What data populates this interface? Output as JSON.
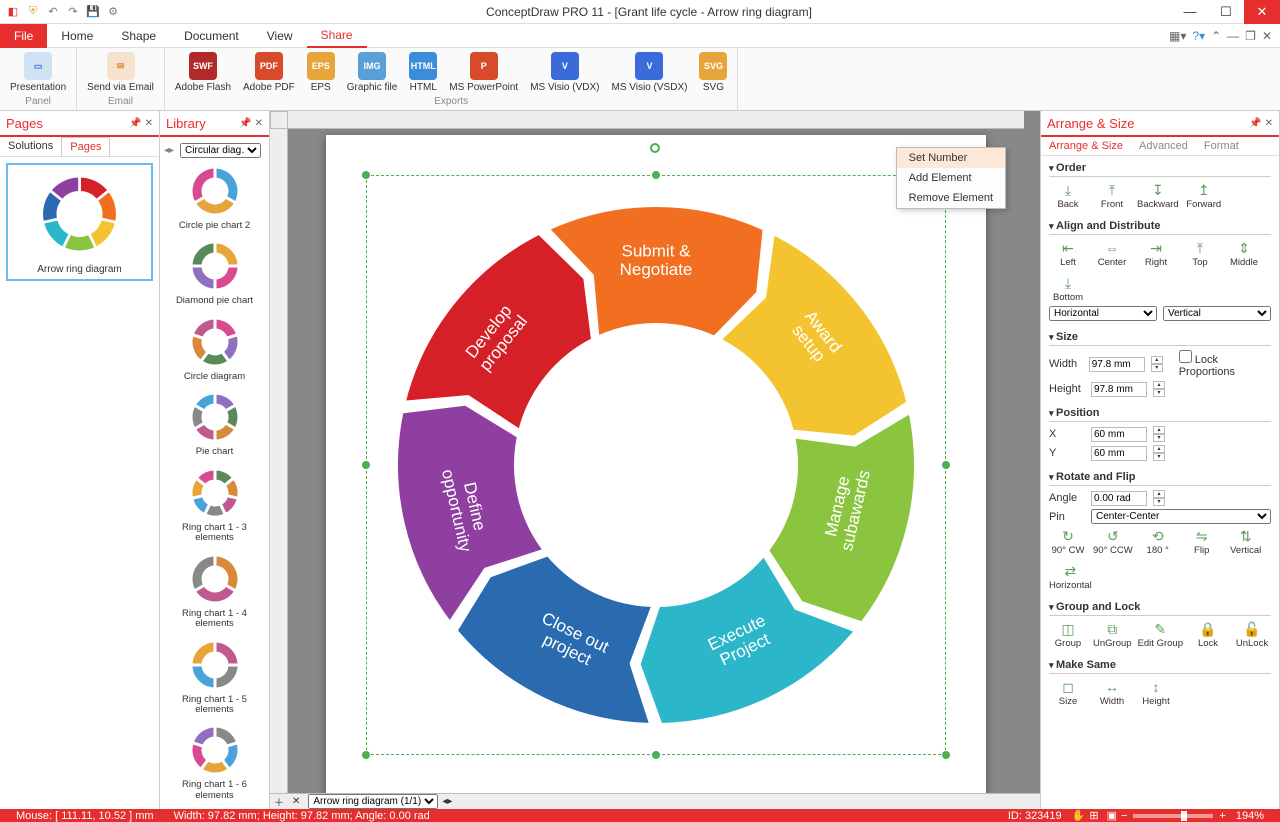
{
  "app_title": "ConceptDraw PRO 11 - [Grant life cycle - Arrow ring diagram]",
  "ribbon": {
    "file": "File",
    "tabs": [
      "Home",
      "Shape",
      "Document",
      "View",
      "Share"
    ],
    "active_tab": "Share",
    "groups": {
      "panel": {
        "label": "Panel",
        "items": [
          {
            "name": "Presentation"
          }
        ]
      },
      "email": {
        "label": "Email",
        "items": [
          {
            "name": "Send via Email"
          }
        ]
      },
      "exports": {
        "label": "Exports",
        "items": [
          {
            "name": "Adobe Flash",
            "color": "#b02a2a",
            "tag": "SWF"
          },
          {
            "name": "Adobe PDF",
            "color": "#d84b2a",
            "tag": "PDF"
          },
          {
            "name": "EPS",
            "color": "#e6a53a",
            "tag": "EPS"
          },
          {
            "name": "Graphic file",
            "color": "#5aa0d8",
            "tag": "IMG"
          },
          {
            "name": "HTML",
            "color": "#3a8dd8",
            "tag": "HTML"
          },
          {
            "name": "MS PowerPoint",
            "color": "#d84b2a",
            "tag": "P"
          },
          {
            "name": "MS Visio (VDX)",
            "color": "#3a6bd8",
            "tag": "V"
          },
          {
            "name": "MS Visio (VSDX)",
            "color": "#3a6bd8",
            "tag": "V"
          },
          {
            "name": "SVG",
            "color": "#e6a53a",
            "tag": "SVG"
          }
        ]
      }
    }
  },
  "pages_panel": {
    "title": "Pages",
    "subtabs": [
      "Solutions",
      "Pages"
    ],
    "active": "Pages",
    "thumb_caption": "Arrow ring diagram"
  },
  "library_panel": {
    "title": "Library",
    "selector": "Circular diag…",
    "items": [
      "Circle pie chart 2",
      "Diamond pie chart",
      "Circle diagram",
      "Pie chart",
      "Ring chart 1 - 3 elements",
      "Ring chart 1 - 4 elements",
      "Ring chart 1 - 5 elements",
      "Ring chart 1 - 6 elements"
    ]
  },
  "diagram": {
    "type": "arrow-ring",
    "outer_r": 260,
    "inner_r": 140,
    "gap_deg": 2,
    "segments": [
      {
        "label": "Develop proposal",
        "color": "#d62027"
      },
      {
        "label": "Submit & Negotiate",
        "color": "#f26f21"
      },
      {
        "label": "Award setup",
        "color": "#f4c430"
      },
      {
        "label": "Manage subawards",
        "color": "#8bc53f"
      },
      {
        "label": "Execute Project",
        "color": "#2bb7c9"
      },
      {
        "label": "Close out project",
        "color": "#2a6bb0"
      },
      {
        "label": "Define opportunity",
        "color": "#8e3fa0"
      }
    ],
    "label_font": "17px",
    "label_color": "#ffffff",
    "selection_color": "#4caf50"
  },
  "context_menu": {
    "items": [
      "Set Number",
      "Add Element",
      "Remove Element"
    ],
    "highlighted": 0
  },
  "arrange_panel": {
    "title": "Arrange & Size",
    "tabs": [
      "Arrange & Size",
      "Advanced",
      "Format"
    ],
    "active": 0,
    "order": {
      "title": "Order",
      "btns": [
        "Back",
        "Front",
        "Backward",
        "Forward"
      ]
    },
    "align": {
      "title": "Align and Distribute",
      "btns": [
        "Left",
        "Center",
        "Right",
        "Top",
        "Middle",
        "Bottom"
      ],
      "h": "Horizontal",
      "v": "Vertical"
    },
    "size": {
      "title": "Size",
      "width_lbl": "Width",
      "width": "97.8 mm",
      "height_lbl": "Height",
      "height": "97.8 mm",
      "lock": "Lock Proportions"
    },
    "position": {
      "title": "Position",
      "x_lbl": "X",
      "x": "60 mm",
      "y_lbl": "Y",
      "y": "60 mm"
    },
    "rotate": {
      "title": "Rotate and Flip",
      "angle_lbl": "Angle",
      "angle": "0.00 rad",
      "pin_lbl": "Pin",
      "pin": "Center-Center",
      "btns": [
        "90° CW",
        "90° CCW",
        "180 °",
        "Flip",
        "Vertical",
        "Horizontal"
      ]
    },
    "group": {
      "title": "Group and Lock",
      "btns": [
        "Group",
        "UnGroup",
        "Edit Group",
        "Lock",
        "UnLock"
      ]
    },
    "same": {
      "title": "Make Same",
      "btns": [
        "Size",
        "Width",
        "Height"
      ]
    }
  },
  "status": {
    "mouse": "Mouse: [ 111.11, 10.52 ] mm",
    "dims": "Width: 97.82 mm;  Height: 97.82 mm;  Angle: 0.00 rad",
    "id": "ID: 323419",
    "zoom": "194%"
  },
  "page_tab": "Arrow ring diagram (1/1)"
}
